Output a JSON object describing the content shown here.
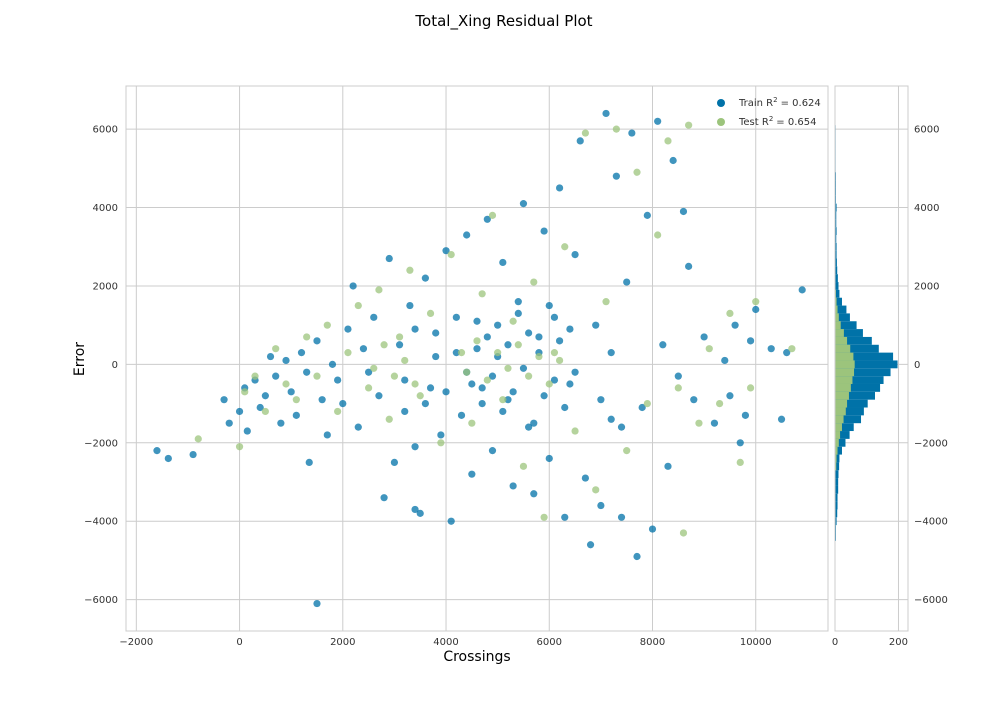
{
  "chart_data": [
    {
      "type": "scatter",
      "title": "Total_Xing Residual Plot",
      "xlabel": "Crossings",
      "ylabel": "Error",
      "xlim": [
        -2200,
        11400
      ],
      "ylim": [
        -6800,
        7100
      ],
      "xticks": [
        -2000,
        0,
        2000,
        4000,
        6000,
        8000,
        10000
      ],
      "yticks": [
        -6000,
        -4000,
        -2000,
        0,
        2000,
        4000,
        6000
      ],
      "grid": true,
      "legend_position": "top-right",
      "series": [
        {
          "name": "Train",
          "label_text": "Train R",
          "r2_text": "= 0.624",
          "color": "#0072a8",
          "points": [
            [
              -1600,
              -2200
            ],
            [
              -1380,
              -2400
            ],
            [
              -900,
              -2300
            ],
            [
              -300,
              -900
            ],
            [
              -200,
              -1500
            ],
            [
              0,
              -1200
            ],
            [
              100,
              -600
            ],
            [
              150,
              -1700
            ],
            [
              300,
              -400
            ],
            [
              400,
              -1100
            ],
            [
              500,
              -800
            ],
            [
              600,
              200
            ],
            [
              700,
              -300
            ],
            [
              800,
              -1500
            ],
            [
              900,
              100
            ],
            [
              1000,
              -700
            ],
            [
              1100,
              -1300
            ],
            [
              1200,
              300
            ],
            [
              1300,
              -200
            ],
            [
              1350,
              -2500
            ],
            [
              1500,
              -6100
            ],
            [
              1500,
              600
            ],
            [
              1600,
              -900
            ],
            [
              1700,
              -1800
            ],
            [
              1800,
              0
            ],
            [
              1900,
              -400
            ],
            [
              2000,
              -1000
            ],
            [
              2100,
              900
            ],
            [
              2200,
              2000
            ],
            [
              2300,
              -1600
            ],
            [
              2400,
              400
            ],
            [
              2500,
              -200
            ],
            [
              2600,
              1200
            ],
            [
              2700,
              -800
            ],
            [
              2800,
              -3400
            ],
            [
              2900,
              2700
            ],
            [
              3000,
              -2500
            ],
            [
              3100,
              500
            ],
            [
              3200,
              -1200
            ],
            [
              3300,
              1500
            ],
            [
              3400,
              -2100
            ],
            [
              3400,
              -3700
            ],
            [
              3500,
              -3800
            ],
            [
              3600,
              2200
            ],
            [
              3700,
              -600
            ],
            [
              3800,
              800
            ],
            [
              3900,
              -1800
            ],
            [
              4000,
              2900
            ],
            [
              4100,
              -4000
            ],
            [
              4200,
              300
            ],
            [
              4300,
              -1300
            ],
            [
              4400,
              3300
            ],
            [
              4500,
              -2800
            ],
            [
              4600,
              1100
            ],
            [
              4700,
              -600
            ],
            [
              4800,
              3700
            ],
            [
              4900,
              -2200
            ],
            [
              5000,
              200
            ],
            [
              5100,
              2600
            ],
            [
              5200,
              -900
            ],
            [
              5300,
              -3100
            ],
            [
              5400,
              1600
            ],
            [
              5500,
              4100
            ],
            [
              5600,
              -1600
            ],
            [
              5700,
              -3300
            ],
            [
              5800,
              700
            ],
            [
              5900,
              3400
            ],
            [
              6000,
              -2400
            ],
            [
              6100,
              1200
            ],
            [
              6200,
              4500
            ],
            [
              6300,
              -3900
            ],
            [
              6400,
              -500
            ],
            [
              6500,
              2800
            ],
            [
              6600,
              5700
            ],
            [
              6700,
              -2900
            ],
            [
              6800,
              -4600
            ],
            [
              6900,
              1000
            ],
            [
              7000,
              -3600
            ],
            [
              7100,
              6400
            ],
            [
              7200,
              -1400
            ],
            [
              7300,
              4800
            ],
            [
              7400,
              -3900
            ],
            [
              7500,
              2100
            ],
            [
              7600,
              5900
            ],
            [
              7700,
              -4900
            ],
            [
              7800,
              -1100
            ],
            [
              7900,
              3800
            ],
            [
              8000,
              -4200
            ],
            [
              8100,
              6200
            ],
            [
              8200,
              500
            ],
            [
              8300,
              -2600
            ],
            [
              8400,
              5200
            ],
            [
              8500,
              -300
            ],
            [
              8600,
              3900
            ],
            [
              8700,
              2500
            ],
            [
              8800,
              -900
            ],
            [
              9000,
              700
            ],
            [
              9200,
              -1500
            ],
            [
              9400,
              100
            ],
            [
              9500,
              -800
            ],
            [
              9600,
              1000
            ],
            [
              9700,
              -2000
            ],
            [
              9800,
              -1300
            ],
            [
              9900,
              600
            ],
            [
              10000,
              1400
            ],
            [
              10300,
              400
            ],
            [
              10500,
              -1400
            ],
            [
              10600,
              300
            ],
            [
              10900,
              1900
            ],
            [
              4500,
              -500
            ],
            [
              4600,
              400
            ],
            [
              4700,
              -1000
            ],
            [
              4800,
              700
            ],
            [
              4900,
              -300
            ],
            [
              5000,
              1000
            ],
            [
              5100,
              -1200
            ],
            [
              5200,
              500
            ],
            [
              5300,
              -700
            ],
            [
              5400,
              1300
            ],
            [
              5500,
              -100
            ],
            [
              5600,
              800
            ],
            [
              5700,
              -1500
            ],
            [
              5800,
              300
            ],
            [
              5900,
              -800
            ],
            [
              6000,
              1500
            ],
            [
              6100,
              -400
            ],
            [
              6200,
              600
            ],
            [
              6300,
              -1100
            ],
            [
              6400,
              900
            ],
            [
              6500,
              -200
            ],
            [
              3200,
              -400
            ],
            [
              3400,
              900
            ],
            [
              3600,
              -1000
            ],
            [
              3800,
              200
            ],
            [
              4000,
              -700
            ],
            [
              4200,
              1200
            ],
            [
              4400,
              -200
            ],
            [
              7000,
              -900
            ],
            [
              7200,
              300
            ],
            [
              7400,
              -1600
            ]
          ]
        },
        {
          "name": "Test",
          "label_text": "Test R",
          "r2_text": "= 0.654",
          "color": "#9cc47c",
          "points": [
            [
              -800,
              -1900
            ],
            [
              0,
              -2100
            ],
            [
              100,
              -700
            ],
            [
              300,
              -300
            ],
            [
              500,
              -1200
            ],
            [
              700,
              400
            ],
            [
              900,
              -500
            ],
            [
              1100,
              -900
            ],
            [
              1300,
              700
            ],
            [
              1500,
              -300
            ],
            [
              1700,
              1000
            ],
            [
              1900,
              -1200
            ],
            [
              2100,
              300
            ],
            [
              2300,
              1500
            ],
            [
              2500,
              -600
            ],
            [
              2700,
              1900
            ],
            [
              2900,
              -1400
            ],
            [
              3100,
              700
            ],
            [
              3300,
              2400
            ],
            [
              3500,
              -800
            ],
            [
              3700,
              1300
            ],
            [
              3900,
              -2000
            ],
            [
              4100,
              2800
            ],
            [
              4300,
              300
            ],
            [
              4500,
              -1500
            ],
            [
              4700,
              1800
            ],
            [
              4900,
              3800
            ],
            [
              5100,
              -900
            ],
            [
              5300,
              1100
            ],
            [
              5500,
              -2600
            ],
            [
              5700,
              2100
            ],
            [
              5900,
              -3900
            ],
            [
              6100,
              300
            ],
            [
              6300,
              3000
            ],
            [
              6500,
              -1700
            ],
            [
              6700,
              5900
            ],
            [
              6900,
              -3200
            ],
            [
              7100,
              1600
            ],
            [
              7300,
              6000
            ],
            [
              7500,
              -2200
            ],
            [
              7700,
              4900
            ],
            [
              7900,
              -1000
            ],
            [
              8100,
              3300
            ],
            [
              8300,
              5700
            ],
            [
              8500,
              -600
            ],
            [
              8600,
              -4300
            ],
            [
              8700,
              6100
            ],
            [
              8900,
              -1500
            ],
            [
              9100,
              400
            ],
            [
              9300,
              -1000
            ],
            [
              9500,
              1300
            ],
            [
              9700,
              -2500
            ],
            [
              9900,
              -600
            ],
            [
              10000,
              1600
            ],
            [
              10700,
              400
            ],
            [
              4400,
              -200
            ],
            [
              4600,
              600
            ],
            [
              4800,
              -400
            ],
            [
              5000,
              300
            ],
            [
              5200,
              -100
            ],
            [
              5400,
              500
            ],
            [
              5600,
              -300
            ],
            [
              5800,
              200
            ],
            [
              6000,
              -500
            ],
            [
              6200,
              100
            ],
            [
              2600,
              -100
            ],
            [
              2800,
              500
            ],
            [
              3000,
              -300
            ],
            [
              3200,
              100
            ],
            [
              3400,
              -500
            ]
          ]
        }
      ],
      "histogram": {
        "type": "bar",
        "orientation": "horizontal",
        "xlim": [
          0,
          230
        ],
        "xticks": [
          0,
          200
        ],
        "bin_width": 200,
        "train_counts": [
          [
            -4400,
            3
          ],
          [
            -4200,
            3
          ],
          [
            -4000,
            5
          ],
          [
            -3800,
            7
          ],
          [
            -3600,
            8
          ],
          [
            -3400,
            8
          ],
          [
            -3200,
            10
          ],
          [
            -3000,
            10
          ],
          [
            -2800,
            11
          ],
          [
            -2600,
            13
          ],
          [
            -2400,
            14
          ],
          [
            -2200,
            22
          ],
          [
            -2000,
            33
          ],
          [
            -1800,
            46
          ],
          [
            -1600,
            59
          ],
          [
            -1400,
            82
          ],
          [
            -1200,
            91
          ],
          [
            -1000,
            103
          ],
          [
            -800,
            126
          ],
          [
            -600,
            142
          ],
          [
            -400,
            153
          ],
          [
            -200,
            175
          ],
          [
            0,
            197
          ],
          [
            200,
            183
          ],
          [
            400,
            138
          ],
          [
            600,
            116
          ],
          [
            800,
            88
          ],
          [
            1000,
            68
          ],
          [
            1200,
            47
          ],
          [
            1400,
            36
          ],
          [
            1600,
            22
          ],
          [
            1800,
            14
          ],
          [
            2000,
            11
          ],
          [
            2200,
            9
          ],
          [
            2400,
            7
          ],
          [
            2600,
            6
          ],
          [
            2800,
            5
          ],
          [
            3000,
            5
          ],
          [
            3200,
            4
          ],
          [
            3400,
            5
          ],
          [
            3600,
            4
          ],
          [
            3800,
            4
          ],
          [
            4000,
            5
          ],
          [
            4200,
            3
          ],
          [
            4400,
            3
          ],
          [
            4600,
            3
          ],
          [
            4800,
            3
          ],
          [
            5000,
            2
          ],
          [
            5200,
            2
          ],
          [
            5400,
            2
          ],
          [
            5600,
            2
          ],
          [
            5800,
            2
          ],
          [
            6000,
            2
          ],
          [
            6200,
            1
          ]
        ],
        "test_counts": [
          [
            -2600,
            4
          ],
          [
            -2400,
            5
          ],
          [
            -2200,
            8
          ],
          [
            -2000,
            12
          ],
          [
            -1800,
            16
          ],
          [
            -1600,
            22
          ],
          [
            -1400,
            27
          ],
          [
            -1200,
            34
          ],
          [
            -1000,
            38
          ],
          [
            -800,
            44
          ],
          [
            -600,
            50
          ],
          [
            -400,
            55
          ],
          [
            -200,
            60
          ],
          [
            0,
            62
          ],
          [
            200,
            58
          ],
          [
            400,
            48
          ],
          [
            600,
            38
          ],
          [
            800,
            28
          ],
          [
            1000,
            18
          ],
          [
            1200,
            12
          ],
          [
            1400,
            8
          ],
          [
            1600,
            5
          ],
          [
            1800,
            3
          ]
        ]
      }
    }
  ]
}
